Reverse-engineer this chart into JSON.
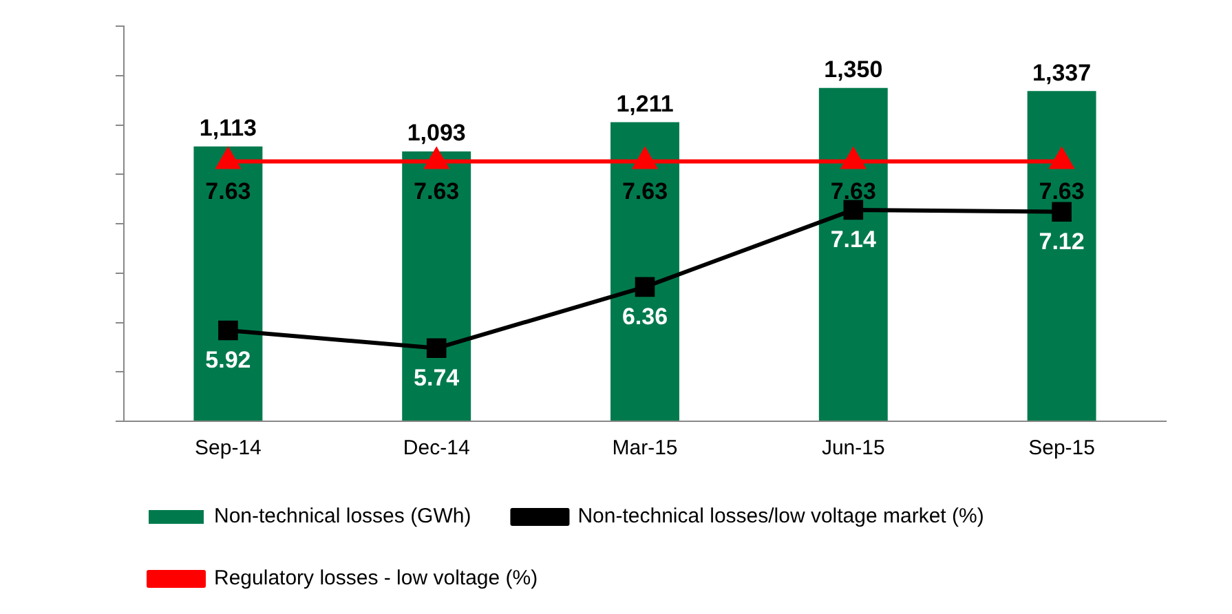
{
  "chart_data": {
    "type": "bar",
    "categories": [
      "Sep-14",
      "Dec-14",
      "Mar-15",
      "Jun-15",
      "Sep-15"
    ],
    "series": [
      {
        "name": "Non-technical losses (GWh)",
        "color": "#007a4d",
        "values": [
          1113,
          1093,
          1211,
          1350,
          1337
        ],
        "value_labels": [
          "1,113",
          "1,093",
          "1,211",
          "1,350",
          "1,337"
        ]
      },
      {
        "name": "Non-technical losses/low voltage market (%)",
        "type": "line",
        "axis": "y2",
        "color": "#000000",
        "marker": "square",
        "values": [
          5.92,
          5.74,
          6.36,
          7.14,
          7.12
        ],
        "value_labels": [
          "5.92",
          "5.74",
          "6.36",
          "7.14",
          "7.12"
        ]
      },
      {
        "name": "Regulatory losses - low voltage (%)",
        "type": "line",
        "axis": "y2",
        "color": "#ff0000",
        "marker": "triangle",
        "values": [
          7.63,
          7.63,
          7.63,
          7.63,
          7.63
        ],
        "value_labels": [
          "7.63",
          "7.63",
          "7.63",
          "7.63",
          "7.63"
        ]
      }
    ],
    "ylim": [
      0,
      1600
    ],
    "yticks": [
      {
        "value": 0,
        "label": null
      },
      {
        "value": 200,
        "label": null
      },
      {
        "value": 400,
        "label": null
      },
      {
        "value": 600,
        "label": null
      },
      {
        "value": 800,
        "label": null
      },
      {
        "value": 1000,
        "label": null
      },
      {
        "value": 1200,
        "label": null
      },
      {
        "value": 1400,
        "label": null
      },
      {
        "value": 1600,
        "label": null
      }
    ],
    "y2lim": [
      5,
      9
    ],
    "tick_labels": "x",
    "grid": false,
    "legend": "bottom"
  }
}
